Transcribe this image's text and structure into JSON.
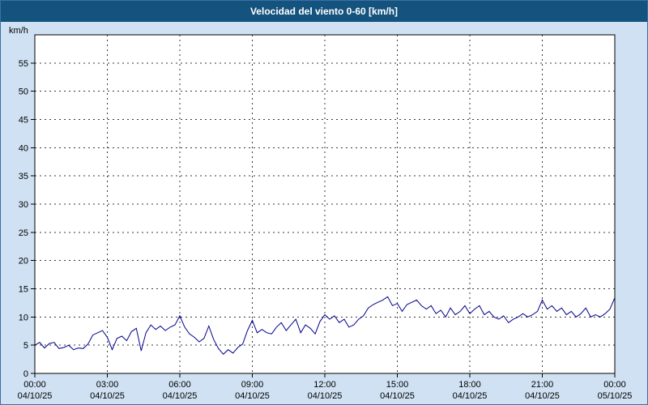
{
  "title_bar": {
    "title": "Velocidad del viento 0-60 [km/h]"
  },
  "colors": {
    "page_bg": "#cfe1f2",
    "title_bg": "#14537e",
    "title_text": "#ffffff",
    "plot_bg": "#ffffff",
    "plot_border": "#000000",
    "grid": "#3a3a3a",
    "line": "#00008c",
    "outer_border": "#3d6fa8"
  },
  "chart_data": {
    "type": "line",
    "title": "Velocidad del viento 0-60 [km/h]",
    "ylabel": "km/h",
    "xlabel": "",
    "ylim": [
      0,
      60
    ],
    "xlim_hours": [
      0,
      24
    ],
    "grid": "dashed",
    "legend": "none",
    "y_ticks": [
      0,
      5,
      10,
      15,
      20,
      25,
      30,
      35,
      40,
      45,
      50,
      55
    ],
    "x_ticks": [
      {
        "time": "00:00",
        "date": "04/10/25"
      },
      {
        "time": "03:00",
        "date": "04/10/25"
      },
      {
        "time": "06:00",
        "date": "04/10/25"
      },
      {
        "time": "09:00",
        "date": "04/10/25"
      },
      {
        "time": "12:00",
        "date": "04/10/25"
      },
      {
        "time": "15:00",
        "date": "04/10/25"
      },
      {
        "time": "18:00",
        "date": "04/10/25"
      },
      {
        "time": "21:00",
        "date": "04/10/25"
      },
      {
        "time": "00:00",
        "date": "05/10/25"
      }
    ],
    "series": [
      {
        "name": "Velocidad del viento",
        "color": "#00008c",
        "x_start_hours": 0,
        "x_step_hours": 0.2,
        "values": [
          5.0,
          5.5,
          4.5,
          5.3,
          5.5,
          4.4,
          4.6,
          5.0,
          4.2,
          4.5,
          4.4,
          5.2,
          6.8,
          7.2,
          7.6,
          6.4,
          4.2,
          6.2,
          6.6,
          5.8,
          7.4,
          8.0,
          4.0,
          7.2,
          8.6,
          7.8,
          8.4,
          7.6,
          8.2,
          8.6,
          10.2,
          8.2,
          7.0,
          6.4,
          5.6,
          6.2,
          8.4,
          6.0,
          4.4,
          3.4,
          4.2,
          3.6,
          4.6,
          5.2,
          7.6,
          9.4,
          7.2,
          7.8,
          7.2,
          7.0,
          8.2,
          9.0,
          7.6,
          8.6,
          9.6,
          7.2,
          8.6,
          8.0,
          7.0,
          9.2,
          10.4,
          9.6,
          10.2,
          9.0,
          9.6,
          8.2,
          8.6,
          9.6,
          10.2,
          11.6,
          12.2,
          12.6,
          13.0,
          13.6,
          12.0,
          12.4,
          11.0,
          12.2,
          12.6,
          13.0,
          12.0,
          11.4,
          12.0,
          10.6,
          11.2,
          10.0,
          11.6,
          10.4,
          11.0,
          12.0,
          10.6,
          11.4,
          12.0,
          10.4,
          11.0,
          10.0,
          9.6,
          10.2,
          9.0,
          9.6,
          10.0,
          10.6,
          10.0,
          10.4,
          11.0,
          13.0,
          11.4,
          12.0,
          11.0,
          11.6,
          10.4,
          11.0,
          10.0,
          10.6,
          11.6,
          10.0,
          10.4,
          10.0,
          10.6,
          11.4,
          13.4
        ]
      }
    ]
  }
}
